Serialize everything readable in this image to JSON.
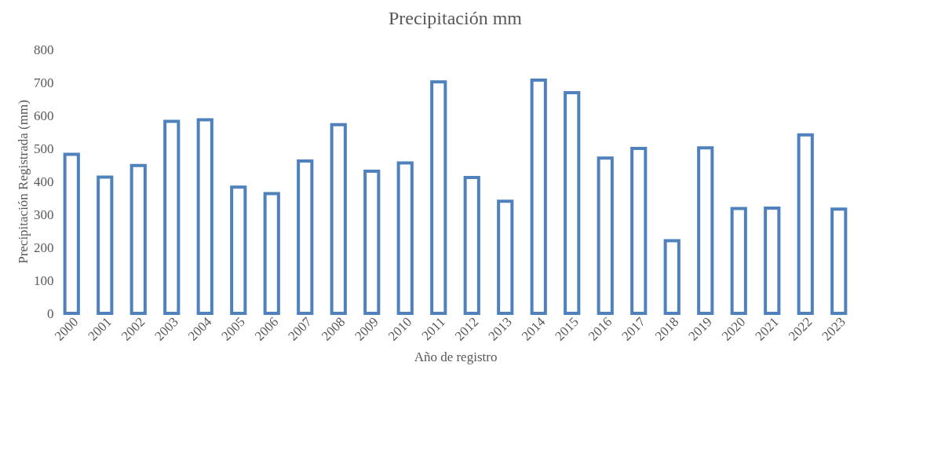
{
  "chart_data": {
    "type": "bar",
    "title": "Precipitación mm",
    "xlabel": "Año de registro",
    "ylabel": "Precipitación Registrada (mm)",
    "categories": [
      "2000",
      "2001",
      "2002",
      "2003",
      "2004",
      "2005",
      "2006",
      "2007",
      "2008",
      "2009",
      "2010",
      "2011",
      "2012",
      "2013",
      "2014",
      "2015",
      "2016",
      "2017",
      "2018",
      "2019",
      "2020",
      "2021",
      "2022",
      "2023"
    ],
    "values": [
      482,
      413,
      448,
      582,
      587,
      383,
      363,
      462,
      572,
      431,
      456,
      702,
      412,
      340,
      707,
      669,
      471,
      500,
      220,
      502,
      318,
      319,
      541,
      316
    ],
    "color": "#4f81bd",
    "ylim": [
      0,
      800
    ],
    "yticks": [
      0,
      100,
      200,
      300,
      400,
      500,
      600,
      700,
      800
    ],
    "grid": false
  }
}
